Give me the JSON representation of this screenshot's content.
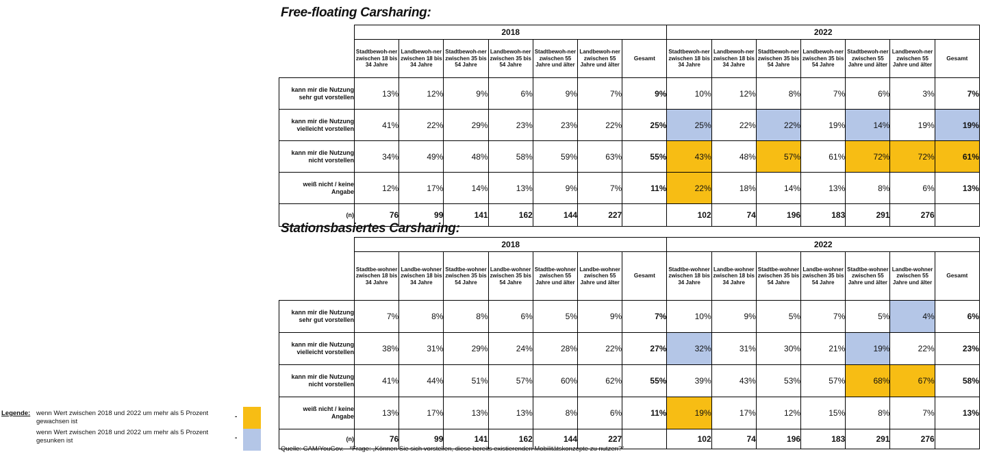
{
  "tables": [
    {
      "title": "Free-floating Carsharing:",
      "year_2018": "2018",
      "year_2022": "2022",
      "headers_2018": [
        "Stadtbewoh-ner zwischen 18 bis 34 Jahre",
        "Landbewoh-ner zwischen 18 bis 34 Jahre",
        "Stadtbewoh-ner zwischen 35 bis 54 Jahre",
        "Landbewoh-ner zwischen 35 bis 54 Jahre",
        "Stadtbewoh-ner zwischen 55 Jahre und älter",
        "Landbewoh-ner zwischen 55 Jahre und älter",
        "Gesamt"
      ],
      "headers_2022": [
        "Stadtbewoh-ner zwischen 18 bis 34 Jahre",
        "Landbewoh-ner zwischen 18 bis 34 Jahre",
        "Stadtbewoh-ner zwischen 35 bis 54 Jahre",
        "Landbewoh-ner zwischen 35 bis 54 Jahre",
        "Stadtbewoh-ner zwischen 55 Jahre und älter",
        "Landbewoh-ner zwischen 55 Jahre und älter",
        "Gesamt"
      ],
      "rows": [
        {
          "label": "kann mir die Nutzung sehr gut vorstellen",
          "v2018": [
            "13%",
            "12%",
            "9%",
            "6%",
            "9%",
            "7%",
            "9%"
          ],
          "v2022": [
            "10%",
            "12%",
            "8%",
            "7%",
            "6%",
            "3%",
            "7%"
          ],
          "hl2022": [
            "",
            "",
            "",
            "",
            "",
            "",
            ""
          ]
        },
        {
          "label": "kann mir die Nutzung vielleicht vorstellen",
          "v2018": [
            "41%",
            "22%",
            "29%",
            "23%",
            "23%",
            "22%",
            "25%"
          ],
          "v2022": [
            "25%",
            "22%",
            "22%",
            "19%",
            "14%",
            "19%",
            "19%"
          ],
          "hl2022": [
            "down",
            "",
            "down",
            "",
            "down",
            "",
            "down"
          ]
        },
        {
          "label": "kann mir die Nutzung nicht vorstellen",
          "v2018": [
            "34%",
            "49%",
            "48%",
            "58%",
            "59%",
            "63%",
            "55%"
          ],
          "v2022": [
            "43%",
            "48%",
            "57%",
            "61%",
            "72%",
            "72%",
            "61%"
          ],
          "hl2022": [
            "up",
            "",
            "up",
            "",
            "up",
            "up",
            "up"
          ]
        },
        {
          "label": "weiß nicht / keine Angabe",
          "v2018": [
            "12%",
            "17%",
            "14%",
            "13%",
            "9%",
            "7%",
            "11%"
          ],
          "v2022": [
            "22%",
            "18%",
            "14%",
            "13%",
            "8%",
            "6%",
            "13%"
          ],
          "hl2022": [
            "up",
            "",
            "",
            "",
            "",
            "",
            ""
          ]
        }
      ],
      "n_label": "(n)",
      "n2018": [
        "76",
        "99",
        "141",
        "162",
        "144",
        "227",
        ""
      ],
      "n2022": [
        "102",
        "74",
        "196",
        "183",
        "291",
        "276",
        ""
      ]
    },
    {
      "title": "Stationsbasiertes Carsharing:",
      "year_2018": "2018",
      "year_2022": "2022",
      "headers_2018": [
        "Stadtbe-wohner zwischen 18 bis 34 Jahre",
        "Landbe-wohner zwischen 18 bis 34 Jahre",
        "Stadtbe-wohner zwischen 35 bis 54 Jahre",
        "Landbe-wohner zwischen 35 bis 54 Jahre",
        "Stadtbe-wohner zwischen 55 Jahre und älter",
        "Landbe-wohner zwischen 55 Jahre und älter",
        "Gesamt"
      ],
      "headers_2022": [
        "Stadtbe-wohner zwischen 18 bis 34 Jahre",
        "Landbe-wohner zwischen 18 bis 34 Jahre",
        "Stadtbe-wohner zwischen 35 bis 54 Jahre",
        "Landbe-wohner zwischen 35 bis 54 Jahre",
        "Stadtbe-wohner zwischen 55 Jahre und älter",
        "Landbe-wohner zwischen 55 Jahre und älter",
        "Gesamt"
      ],
      "rows": [
        {
          "label": "kann mir die Nutzung sehr gut vorstellen",
          "v2018": [
            "7%",
            "8%",
            "8%",
            "6%",
            "5%",
            "9%",
            "7%"
          ],
          "v2022": [
            "10%",
            "9%",
            "5%",
            "7%",
            "5%",
            "4%",
            "6%"
          ],
          "hl2022": [
            "",
            "",
            "",
            "",
            "",
            "down",
            ""
          ]
        },
        {
          "label": "kann mir die Nutzung vielleicht vorstellen",
          "v2018": [
            "38%",
            "31%",
            "29%",
            "24%",
            "28%",
            "22%",
            "27%"
          ],
          "v2022": [
            "32%",
            "31%",
            "30%",
            "21%",
            "19%",
            "22%",
            "23%"
          ],
          "hl2022": [
            "down",
            "",
            "",
            "",
            "down",
            "",
            ""
          ]
        },
        {
          "label": "kann mir die Nutzung nicht vorstellen",
          "v2018": [
            "41%",
            "44%",
            "51%",
            "57%",
            "60%",
            "62%",
            "55%"
          ],
          "v2022": [
            "39%",
            "43%",
            "53%",
            "57%",
            "68%",
            "67%",
            "58%"
          ],
          "hl2022": [
            "",
            "",
            "",
            "",
            "up",
            "up",
            ""
          ]
        },
        {
          "label": "weiß nicht / keine Angabe",
          "v2018": [
            "13%",
            "17%",
            "13%",
            "13%",
            "8%",
            "6%",
            "11%"
          ],
          "v2022": [
            "19%",
            "17%",
            "12%",
            "15%",
            "8%",
            "7%",
            "13%"
          ],
          "hl2022": [
            "up",
            "",
            "",
            "",
            "",
            "",
            ""
          ]
        }
      ],
      "n_label": "(n)",
      "n2018": [
        "76",
        "99",
        "141",
        "162",
        "144",
        "227",
        ""
      ],
      "n2022": [
        "102",
        "74",
        "196",
        "183",
        "291",
        "276",
        ""
      ]
    }
  ],
  "legend": {
    "heading": "Legende:",
    "up_text": "wenn Wert zwischen 2018 und 2022 um mehr als 5 Prozent gewachsen ist",
    "down_text": "wenn Wert zwischen 2018 und 2022 um mehr als 5 Prozent gesunken ist",
    "dash": "-",
    "up_color": "#F7BD14",
    "down_color": "#B4C6E7"
  },
  "source": {
    "label": "Quelle: CAM/YouGov.",
    "question": "*Frage: „Können Sie sich vorstellen, diese bereits existierenden Mobilitätskonzepte zu nutzen?“"
  }
}
